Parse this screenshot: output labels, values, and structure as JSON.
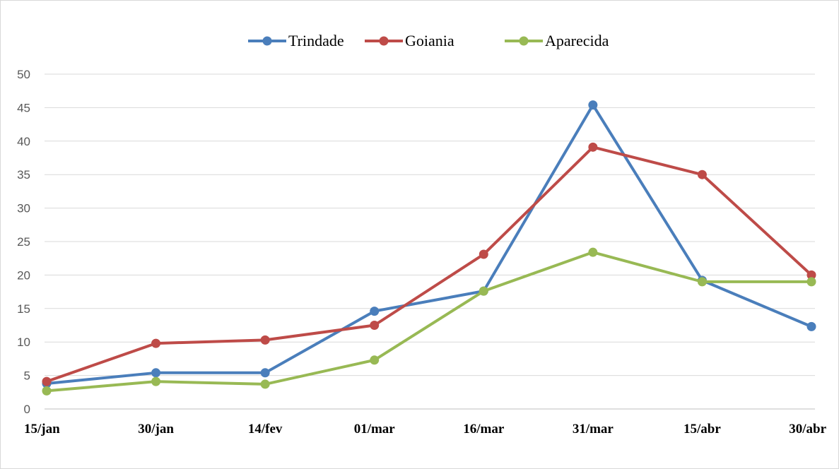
{
  "chart_data": {
    "type": "line",
    "title": "",
    "xlabel": "",
    "ylabel": "",
    "categories": [
      "15/jan",
      "30/jan",
      "14/fev",
      "01/mar",
      "16/mar",
      "31/mar",
      "15/abr",
      "30/abr"
    ],
    "series": [
      {
        "name": "Trindade",
        "color": "#4a7ebb",
        "values": [
          3.8,
          5.4,
          5.4,
          14.6,
          17.6,
          45.4,
          19.2,
          12.3
        ]
      },
      {
        "name": "Goiania",
        "color": "#be4b48",
        "values": [
          4.1,
          9.8,
          10.3,
          12.5,
          23.1,
          39.1,
          35.0,
          20.0
        ]
      },
      {
        "name": "Aparecida",
        "color": "#98b954",
        "values": [
          2.7,
          4.1,
          3.7,
          7.3,
          17.6,
          23.4,
          19.0,
          19.0
        ]
      }
    ],
    "ylim": [
      0,
      50
    ],
    "yticks": [
      0,
      5,
      10,
      15,
      20,
      25,
      30,
      35,
      40,
      45,
      50
    ],
    "grid": true,
    "legend_position": "top-center"
  }
}
